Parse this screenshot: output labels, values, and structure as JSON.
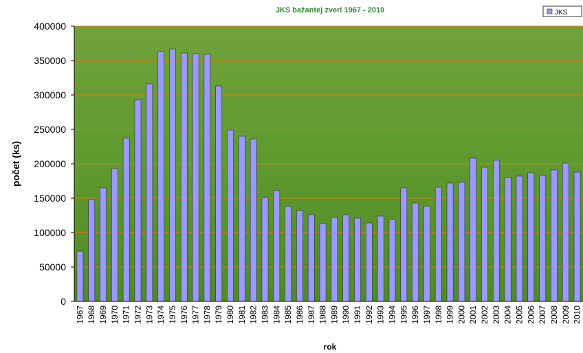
{
  "chart_data": {
    "type": "bar",
    "title": "JKS bažantej zveri 1967 - 2010",
    "x_label": "rok",
    "y_label": "počet (ks)",
    "categories": [
      "1967",
      "1968",
      "1969",
      "1970",
      "1971",
      "1972",
      "1973",
      "1974",
      "1975",
      "1976",
      "1977",
      "1978",
      "1979",
      "1980",
      "1981",
      "1982",
      "1983",
      "1984",
      "1985",
      "1986",
      "1987",
      "1988",
      "1989",
      "1990",
      "1991",
      "1992",
      "1993",
      "1994",
      "1995",
      "1996",
      "1997",
      "1998",
      "1999",
      "2000",
      "2001",
      "2002",
      "2003",
      "2004",
      "2005",
      "2006",
      "2007",
      "2008",
      "2009",
      "2010"
    ],
    "series": [
      {
        "name": "JKS",
        "color": "#9999ff",
        "values": [
          73000,
          148000,
          165000,
          193000,
          237000,
          293000,
          316000,
          363000,
          367000,
          361000,
          360000,
          359000,
          313000,
          249000,
          240000,
          236000,
          151000,
          161000,
          138000,
          132000,
          126000,
          113000,
          122000,
          126000,
          121000,
          114000,
          124000,
          119000,
          165000,
          143000,
          138000,
          166000,
          172000,
          173000,
          208000,
          195000,
          205000,
          180000,
          182000,
          187000,
          183000,
          191000,
          201000,
          188000
        ]
      }
    ],
    "ylim": [
      0,
      400000
    ],
    "yticks": [
      0,
      50000,
      100000,
      150000,
      200000,
      250000,
      300000,
      350000,
      400000
    ],
    "grid": true,
    "grid_color": "#e07a10",
    "legend": "top-right"
  }
}
